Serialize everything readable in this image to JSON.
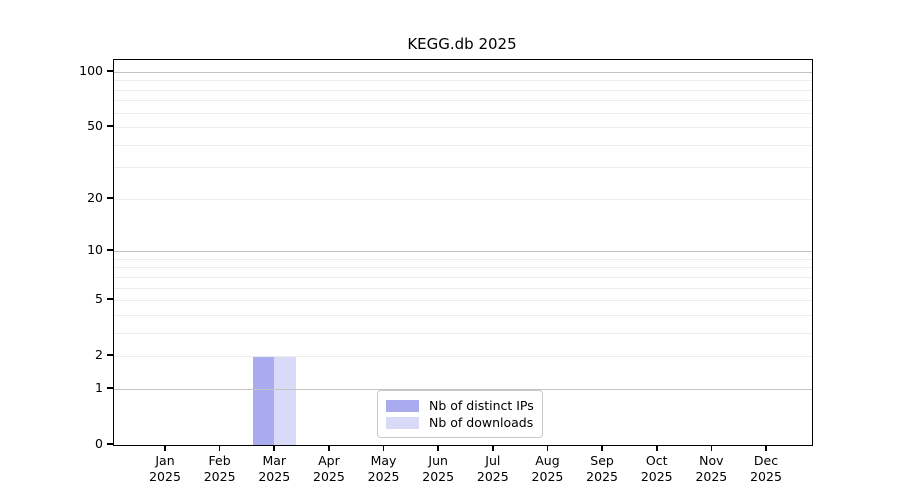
{
  "chart_data": {
    "type": "bar",
    "title": "KEGG.db 2025",
    "categories": [
      "Jan",
      "Feb",
      "Mar",
      "Apr",
      "May",
      "Jun",
      "Jul",
      "Aug",
      "Sep",
      "Oct",
      "Nov",
      "Dec"
    ],
    "category_year": "2025",
    "series": [
      {
        "name": "Nb of distinct IPs",
        "color": "#aaaaee",
        "values": [
          0,
          0,
          2,
          0,
          0,
          0,
          0,
          0,
          0,
          0,
          0,
          0
        ]
      },
      {
        "name": "Nb of downloads",
        "color": "#d9d9f8",
        "values": [
          0,
          0,
          2,
          0,
          0,
          0,
          0,
          0,
          0,
          0,
          0,
          0
        ]
      }
    ],
    "y_scale": "log1p",
    "ylim": [
      0,
      116
    ],
    "y_ticks": [
      0,
      1,
      2,
      5,
      10,
      20,
      50,
      100
    ],
    "grid_major_values": [
      1,
      10,
      100
    ],
    "grid_minor_values": [
      2,
      3,
      4,
      5,
      6,
      7,
      8,
      9,
      20,
      30,
      40,
      50,
      60,
      70,
      80,
      90
    ],
    "legend_position": "bottom-center",
    "grid_on": true,
    "colors": {
      "grid_major": "#c3c3c3",
      "grid_minor": "#ececec",
      "axis": "#000000",
      "background": "#ffffff"
    }
  }
}
